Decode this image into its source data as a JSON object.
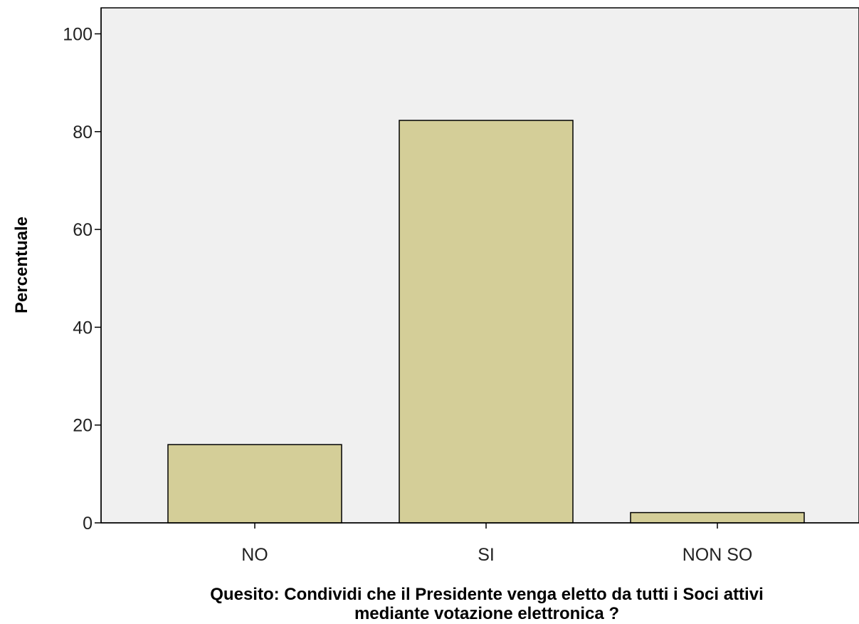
{
  "colors": {
    "plot_background": "#f0f0f0",
    "bar_fill": "#d4ce98",
    "bar_stroke": "#000000",
    "axis": "#000000",
    "text": "#222222"
  },
  "chart_data": {
    "type": "bar",
    "categories": [
      "NO",
      "SI",
      "NON SO"
    ],
    "values": [
      16,
      82.3,
      2.1
    ],
    "xlabel_lines": [
      "Quesito: Condividi che il Presidente venga eletto da tutti i Soci attivi",
      "mediante votazione elettronica ?"
    ],
    "ylabel": "Percentuale",
    "ylim": [
      0,
      105
    ],
    "yticks": [
      0,
      20,
      40,
      60,
      80,
      100
    ],
    "grid": false,
    "legend": "none"
  }
}
